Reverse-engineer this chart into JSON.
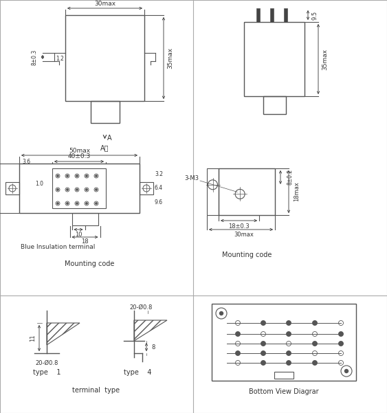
{
  "bg_color": "#ffffff",
  "line_color": "#555555",
  "dim_color": "#333333",
  "labels": {
    "30max": "30max",
    "35max": "35max",
    "8pm03": "8±0.3",
    "1.2": "1.2",
    "A": "A",
    "A_dir": "A向",
    "50max": "50max",
    "40pm03": "40±0.3",
    "18max": "18max",
    "3.6": "3.6",
    "1.0": "1.0",
    "3.2": "3.2",
    "6.4": "6.4",
    "9.6": "9.6",
    "10": "10",
    "18": "18",
    "blue_term": "Blue Insulation terminal",
    "mount_code": "Mounting code",
    "9.5": "9.5",
    "3_M3": "3-M3",
    "8pm02": "8±0.2",
    "18max_r": "18max",
    "18pm03": "18±0.3",
    "30max_r": "30max",
    "20d08": "20-Ø0.8",
    "11": "11",
    "type1": "type    1",
    "8_r": "8",
    "type4": "type    4",
    "terminal_type": "terminal  type",
    "bottom_view": "Bottom View Diagrar"
  }
}
